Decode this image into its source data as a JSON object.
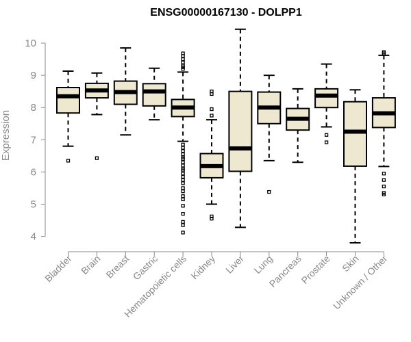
{
  "chart_data": {
    "type": "boxplot",
    "title": "ENSG00000167130 - DOLPP1",
    "ylabel": "Expression",
    "xlabel": "",
    "ylim": [
      3.7,
      10.6
    ],
    "yticks": [
      4,
      5,
      6,
      7,
      8,
      9,
      10
    ],
    "grid": false,
    "box_fill": "#efe8d0",
    "categories": [
      "Bladder",
      "Brain",
      "Breast",
      "Gastric",
      "Hematopoietic cells",
      "Kidney",
      "Liver",
      "Lung",
      "Pancreas",
      "Prostate",
      "Skin",
      "Unknown / Other"
    ],
    "boxes": [
      {
        "whisker_low": 6.8,
        "q1": 7.83,
        "median": 8.35,
        "q3": 8.62,
        "whisker_high": 9.13,
        "outliers": [
          6.35
        ]
      },
      {
        "whisker_low": 7.78,
        "q1": 8.3,
        "median": 8.53,
        "q3": 8.75,
        "whisker_high": 9.07,
        "outliers": [
          6.43
        ]
      },
      {
        "whisker_low": 7.15,
        "q1": 8.1,
        "median": 8.48,
        "q3": 8.82,
        "whisker_high": 9.85,
        "outliers": []
      },
      {
        "whisker_low": 7.62,
        "q1": 8.05,
        "median": 8.5,
        "q3": 8.74,
        "whisker_high": 9.22,
        "outliers": []
      },
      {
        "whisker_low": 6.95,
        "q1": 7.72,
        "median": 8.0,
        "q3": 8.25,
        "whisker_high": 9.1,
        "outliers": [
          9.2,
          9.25,
          9.3,
          9.4,
          9.5,
          9.6,
          9.68,
          6.85,
          6.75,
          6.65,
          6.55,
          6.45,
          6.4,
          6.3,
          6.2,
          6.1,
          6.05,
          5.95,
          5.85,
          5.75,
          5.65,
          5.5,
          5.4,
          5.25,
          5.15,
          4.95,
          4.7,
          4.45,
          4.35,
          4.12
        ]
      },
      {
        "whisker_low": 5.0,
        "q1": 5.82,
        "median": 6.18,
        "q3": 6.57,
        "whisker_high": 7.62,
        "outliers": [
          7.75,
          7.95,
          8.42,
          8.5,
          4.62,
          4.55
        ]
      },
      {
        "whisker_low": 4.28,
        "q1": 6.02,
        "median": 6.73,
        "q3": 8.5,
        "whisker_high": 10.43,
        "outliers": []
      },
      {
        "whisker_low": 6.35,
        "q1": 7.5,
        "median": 8.0,
        "q3": 8.48,
        "whisker_high": 9.0,
        "outliers": [
          5.38
        ]
      },
      {
        "whisker_low": 6.3,
        "q1": 7.3,
        "median": 7.65,
        "q3": 7.97,
        "whisker_high": 8.58,
        "outliers": []
      },
      {
        "whisker_low": 7.4,
        "q1": 8.0,
        "median": 8.37,
        "q3": 8.58,
        "whisker_high": 9.35,
        "outliers": [
          7.15,
          6.92
        ]
      },
      {
        "whisker_low": 3.8,
        "q1": 6.18,
        "median": 7.25,
        "q3": 8.18,
        "whisker_high": 8.55,
        "outliers": []
      },
      {
        "whisker_low": 6.17,
        "q1": 7.38,
        "median": 7.82,
        "q3": 8.3,
        "whisker_high": 9.62,
        "outliers": [
          9.68,
          9.72,
          5.95,
          5.75,
          5.55,
          5.35,
          5.3
        ]
      }
    ]
  }
}
